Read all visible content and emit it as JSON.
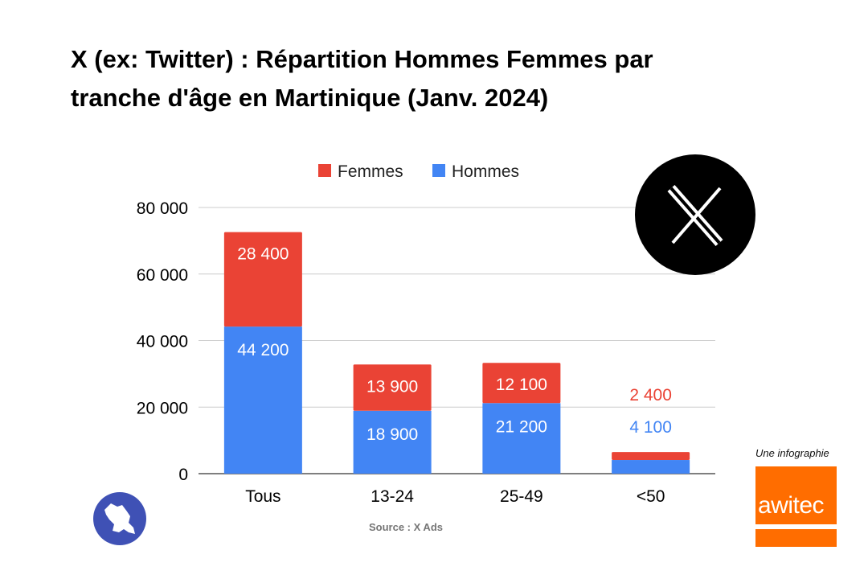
{
  "title_lines": [
    "X (ex: Twitter) : Répartition Hommes Femmes par",
    "tranche d'âge en Martinique (Janv. 2024)"
  ],
  "source": "Source : X Ads",
  "credit": "Une infographie",
  "brand": "awitec",
  "logo_x_icon": "x-logo-icon",
  "colors": {
    "hommes": "#4285f4",
    "femmes": "#ea4335",
    "grid": "#cccccc",
    "awitec": "#ff6d00",
    "martinique_badge": "#3f51b5"
  },
  "chart_data": {
    "type": "bar",
    "stacked": true,
    "categories": [
      "Tous",
      "13-24",
      "25-49",
      "<50"
    ],
    "series": [
      {
        "name": "Hommes",
        "values": [
          44200,
          18900,
          21200,
          4100
        ],
        "labels": [
          "44 200",
          "18 900",
          "21 200",
          "4 100"
        ]
      },
      {
        "name": "Femmes",
        "values": [
          28400,
          13900,
          12100,
          2400
        ],
        "labels": [
          "28 400",
          "13 900",
          "12 100",
          "2 400"
        ]
      }
    ],
    "ylim": [
      0,
      80000
    ],
    "yticks": [
      0,
      20000,
      40000,
      60000,
      80000
    ],
    "ytick_labels": [
      "0",
      "20 000",
      "40 000",
      "60 000",
      "80 000"
    ],
    "legend": [
      {
        "name": "Femmes",
        "color": "#ea4335"
      },
      {
        "name": "Hommes",
        "color": "#4285f4"
      }
    ],
    "legend_position": "top",
    "grid": true
  }
}
